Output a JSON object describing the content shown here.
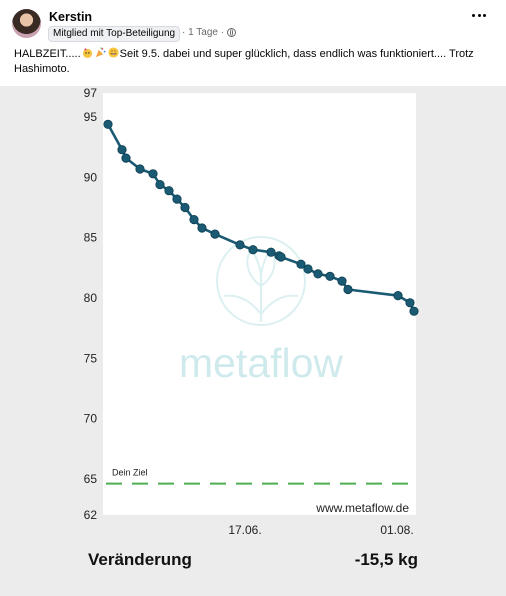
{
  "post": {
    "author": "Kerstin",
    "badge": "Mitglied mit Top-Beteiligung",
    "time": "· 1 Tage ·",
    "text_before": "HALBZEIT.....",
    "text_after": "Seit 9.5. dabei und super glücklich, dass endlich was funktioniert.... Trotz Hashimoto.",
    "emojis": [
      "party-emoji",
      "confetti-emoji",
      "grin-emoji"
    ],
    "more_icon": "more-horizontal-icon",
    "privacy_icon": "globe-icon"
  },
  "chart_data": {
    "type": "line",
    "ylim": [
      62,
      97
    ],
    "y_ticks": [
      62,
      65,
      70,
      75,
      80,
      85,
      90,
      95,
      97
    ],
    "x_ticks": [
      "17.06.",
      "01.08."
    ],
    "watermark": "metaflow",
    "website": "www.metaflow.de",
    "goal_label": "Dein Ziel",
    "goal_value": 64.6,
    "line_color": "#1a5a73",
    "goal_color": "#4caf50",
    "series": [
      {
        "values": [
          94.4,
          92.3,
          91.6,
          90.7,
          90.3,
          89.4,
          88.9,
          88.2,
          87.5,
          86.5,
          85.8,
          85.3,
          84.4,
          84.0,
          83.8,
          83.5,
          83.4,
          82.8,
          82.4,
          82.0,
          81.8,
          81.4,
          80.7,
          80.2,
          79.6,
          78.9
        ]
      }
    ]
  },
  "summary": {
    "label": "Veränderung",
    "value": "-15,5 kg"
  }
}
